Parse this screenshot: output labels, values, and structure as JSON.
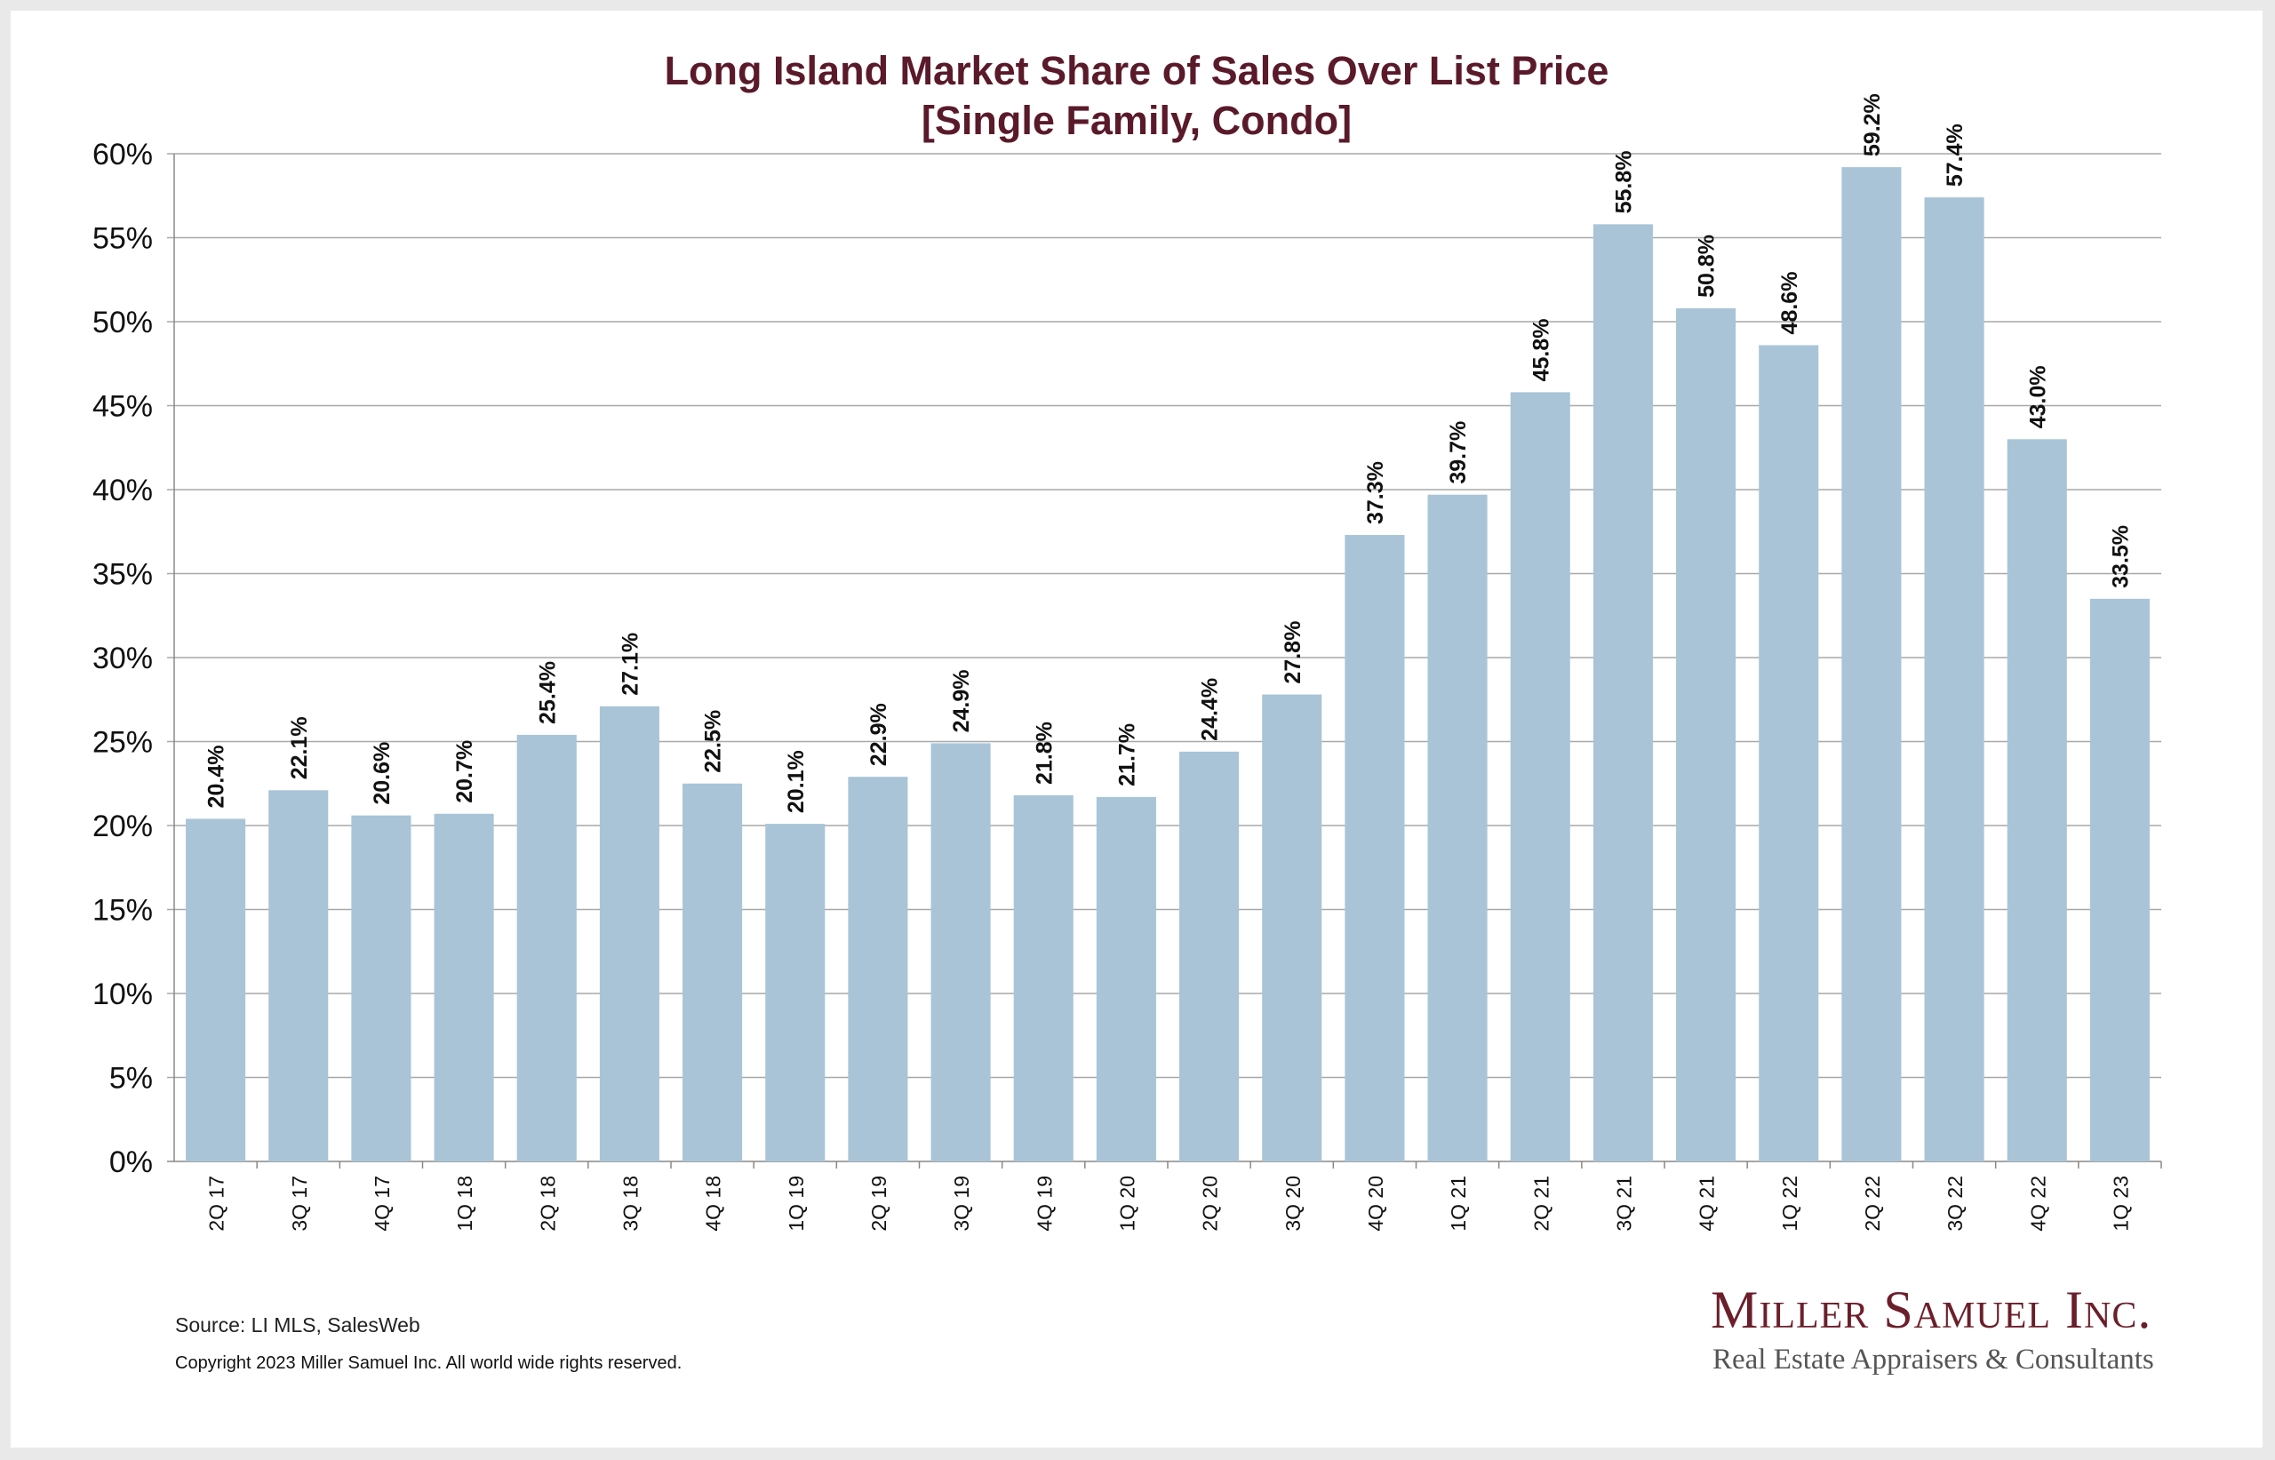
{
  "colors": {
    "bar": "#a9c4d7",
    "title": "#5a1a2a",
    "grid": "#a8a8a8",
    "logo": "#6b1f2a"
  },
  "chart_data": {
    "type": "bar",
    "title": "Long Island Market Share of Sales Over List Price",
    "subtitle": "[Single Family, Condo]",
    "categories": [
      "2Q 17",
      "3Q 17",
      "4Q 17",
      "1Q 18",
      "2Q 18",
      "3Q 18",
      "4Q 18",
      "1Q 19",
      "2Q 19",
      "3Q 19",
      "4Q 19",
      "1Q 20",
      "2Q 20",
      "3Q 20",
      "4Q 20",
      "1Q 21",
      "2Q 21",
      "3Q 21",
      "4Q 21",
      "1Q 22",
      "2Q 22",
      "3Q 22",
      "4Q 22",
      "1Q 23"
    ],
    "values": [
      20.4,
      22.1,
      20.6,
      20.7,
      25.4,
      27.1,
      22.5,
      20.1,
      22.9,
      24.9,
      21.8,
      21.7,
      24.4,
      27.8,
      37.3,
      39.7,
      45.8,
      55.8,
      50.8,
      48.6,
      59.2,
      57.4,
      43.0,
      33.5
    ],
    "data_labels": [
      "20.4%",
      "22.1%",
      "20.6%",
      "20.7%",
      "25.4%",
      "27.1%",
      "22.5%",
      "20.1%",
      "22.9%",
      "24.9%",
      "21.8%",
      "21.7%",
      "24.4%",
      "27.8%",
      "37.3%",
      "39.7%",
      "45.8%",
      "55.8%",
      "50.8%",
      "48.6%",
      "59.2%",
      "57.4%",
      "43.0%",
      "33.5%"
    ],
    "ylim": [
      0,
      60
    ],
    "y_ticks": [
      0,
      5,
      10,
      15,
      20,
      25,
      30,
      35,
      40,
      45,
      50,
      55,
      60
    ],
    "y_tick_labels": [
      "0%",
      "5%",
      "10%",
      "15%",
      "20%",
      "25%",
      "30%",
      "35%",
      "40%",
      "45%",
      "50%",
      "55%",
      "60%"
    ],
    "xlabel": "",
    "ylabel": "",
    "grid": true,
    "legend": "none"
  },
  "footer": {
    "source": "Source:  LI MLS, SalesWeb",
    "copyright": "Copyright 2023 Miller Samuel Inc.  All world wide rights reserved."
  },
  "logo": {
    "name": "Miller Samuel Inc.",
    "tagline": "Real Estate Appraisers & Consultants"
  }
}
